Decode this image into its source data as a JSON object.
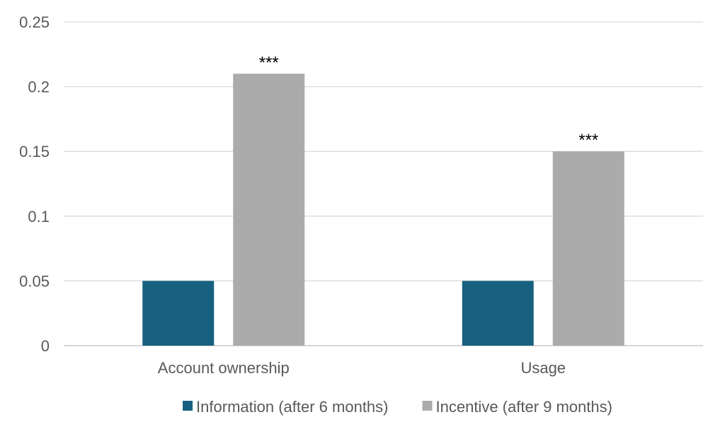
{
  "chart_data": {
    "type": "bar",
    "categories": [
      "Account ownership",
      "Usage"
    ],
    "series": [
      {
        "name": "Information (after 6 months)",
        "values": [
          0.05,
          0.05
        ],
        "color": "#17607f",
        "annotations": [
          "",
          ""
        ]
      },
      {
        "name": "Incentive (after 9 months)",
        "values": [
          0.21,
          0.15
        ],
        "color": "#ababab",
        "annotations": [
          "***",
          "***"
        ]
      }
    ],
    "title": "",
    "xlabel": "",
    "ylabel": "",
    "ylim": [
      0,
      0.25
    ],
    "yticks": [
      "0",
      "0.05",
      "0.1",
      "0.15",
      "0.2",
      "0.25"
    ],
    "grid": true,
    "legend": "bottom"
  }
}
